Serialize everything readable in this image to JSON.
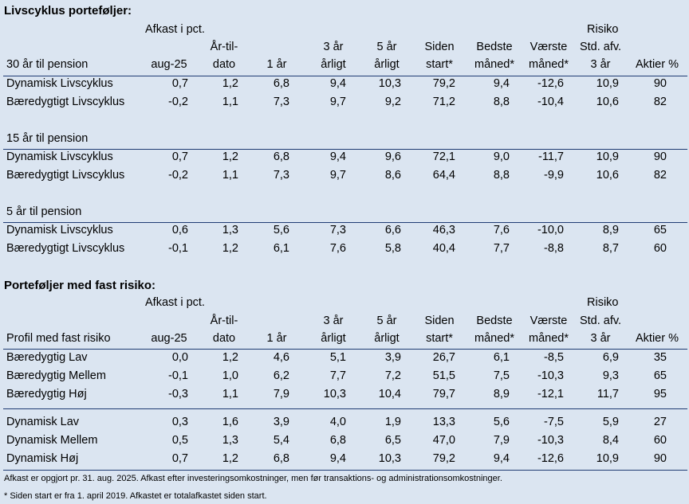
{
  "section1": {
    "title": "Livscyklus porteføljer:",
    "group_label": "Afkast i pct.",
    "risk_label": "Risiko",
    "row_header_label": "30 år til pension",
    "col_labels": [
      [
        "",
        "aug-25"
      ],
      [
        "År-til-",
        "dato"
      ],
      [
        "",
        "1 år"
      ],
      [
        "3 år",
        "årligt"
      ],
      [
        "5 år",
        "årligt"
      ],
      [
        "Siden",
        "start*"
      ],
      [
        "Bedste",
        "måned*"
      ],
      [
        "Værste",
        "måned*"
      ],
      [
        "Std. afv.",
        "3 år"
      ],
      [
        "",
        "Aktier %"
      ]
    ],
    "groups": [
      {
        "label": "30 år til pension",
        "rows": [
          {
            "name": "Dynamisk Livscyklus",
            "values": [
              "0,7",
              "1,2",
              "6,8",
              "9,4",
              "10,3",
              "79,2",
              "9,4",
              "-12,6",
              "10,9",
              "90"
            ]
          },
          {
            "name": "Bæredygtigt Livscyklus",
            "values": [
              "-0,2",
              "1,1",
              "7,3",
              "9,7",
              "9,2",
              "71,2",
              "8,8",
              "-10,4",
              "10,6",
              "82"
            ]
          }
        ]
      },
      {
        "label": "15 år til pension",
        "rows": [
          {
            "name": "Dynamisk Livscyklus",
            "values": [
              "0,7",
              "1,2",
              "6,8",
              "9,4",
              "9,6",
              "72,1",
              "9,0",
              "-11,7",
              "10,9",
              "90"
            ]
          },
          {
            "name": "Bæredygtigt Livscyklus",
            "values": [
              "-0,2",
              "1,1",
              "7,3",
              "9,7",
              "8,6",
              "64,4",
              "8,8",
              "-9,9",
              "10,6",
              "82"
            ]
          }
        ]
      },
      {
        "label": "5 år til pension",
        "rows": [
          {
            "name": "Dynamisk Livscyklus",
            "values": [
              "0,6",
              "1,3",
              "5,6",
              "7,3",
              "6,6",
              "46,3",
              "7,6",
              "-10,0",
              "8,9",
              "65"
            ]
          },
          {
            "name": "Bæredygtigt Livscyklus",
            "values": [
              "-0,1",
              "1,2",
              "6,1",
              "7,6",
              "5,8",
              "40,4",
              "7,7",
              "-8,8",
              "8,7",
              "60"
            ]
          }
        ]
      }
    ]
  },
  "section2": {
    "title": "Porteføljer med fast risiko:",
    "group_label": "Afkast i pct.",
    "risk_label": "Risiko",
    "row_header_label": "Profil med fast risiko",
    "rows_a": [
      {
        "name": "Bæredygtig Lav",
        "values": [
          "0,0",
          "1,2",
          "4,6",
          "5,1",
          "3,9",
          "26,7",
          "6,1",
          "-8,5",
          "6,9",
          "35"
        ]
      },
      {
        "name": "Bæredygtig Mellem",
        "values": [
          "-0,1",
          "1,0",
          "6,2",
          "7,7",
          "7,2",
          "51,5",
          "7,5",
          "-10,3",
          "9,3",
          "65"
        ]
      },
      {
        "name": "Bæredygtig Høj",
        "values": [
          "-0,3",
          "1,1",
          "7,9",
          "10,3",
          "10,4",
          "79,7",
          "8,9",
          "-12,1",
          "11,7",
          "95"
        ]
      }
    ],
    "rows_b": [
      {
        "name": "Dynamisk Lav",
        "values": [
          "0,3",
          "1,6",
          "3,9",
          "4,0",
          "1,9",
          "13,3",
          "5,6",
          "-7,5",
          "5,9",
          "27"
        ]
      },
      {
        "name": "Dynamisk Mellem",
        "values": [
          "0,5",
          "1,3",
          "5,4",
          "6,8",
          "6,5",
          "47,0",
          "7,9",
          "-10,3",
          "8,4",
          "60"
        ]
      },
      {
        "name": "Dynamisk Høj",
        "values": [
          "0,7",
          "1,2",
          "6,8",
          "9,4",
          "10,3",
          "79,2",
          "9,4",
          "-12,6",
          "10,9",
          "90"
        ]
      }
    ]
  },
  "footnotes": [
    "Afkast er opgjort pr. 31. aug. 2025. Afkast efter investeringsomkostninger, men før transaktions- og administrationsomkostninger.",
    "* Siden start er fra 1. april 2019. Afkastet er totalafkastet siden start."
  ]
}
